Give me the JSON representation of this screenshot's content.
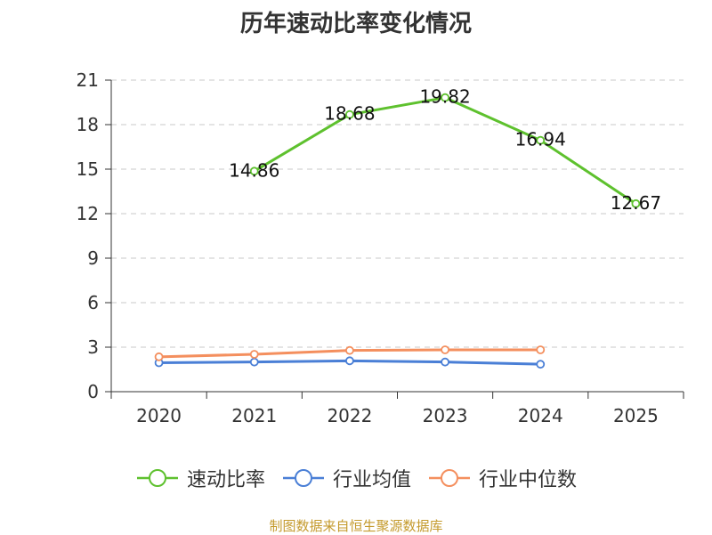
{
  "title": "历年速动比率变化情况",
  "source_text": "制图数据来自恒生聚源数据库",
  "chart_data": {
    "type": "line",
    "title": "历年速动比率变化情况",
    "xlabel": "",
    "ylabel": "",
    "categories": [
      "2020",
      "2021",
      "2022",
      "2023",
      "2024",
      "2025"
    ],
    "ylim": [
      0,
      21
    ],
    "yticks": [
      0,
      3,
      6,
      9,
      12,
      15,
      18,
      21
    ],
    "grid": true,
    "legend_position": "bottom",
    "series": [
      {
        "name": "速动比率",
        "color": "#5ec12e",
        "values": [
          null,
          14.86,
          18.68,
          19.82,
          16.94,
          12.67
        ],
        "labels": [
          "",
          "14.86",
          "18.68",
          "19.82",
          "16.94",
          "12.67"
        ]
      },
      {
        "name": "行业均值",
        "color": "#4a7fd6",
        "values": [
          1.95,
          2.0,
          2.08,
          2.0,
          1.85,
          null
        ]
      },
      {
        "name": "行业中位数",
        "color": "#f48f5e",
        "values": [
          2.35,
          2.52,
          2.78,
          2.82,
          2.82,
          null
        ]
      }
    ]
  }
}
